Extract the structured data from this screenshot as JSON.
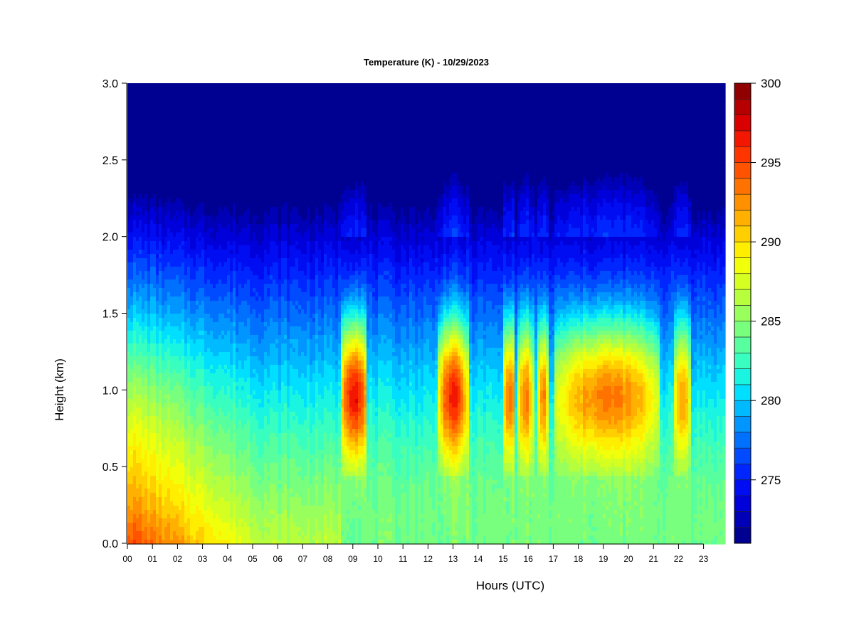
{
  "chart_data": {
    "type": "heatmap",
    "title": "Temperature (K) - 10/29/2023",
    "xlabel": "Hours (UTC)",
    "ylabel": "Height (km)",
    "xlim": [
      0,
      23.9
    ],
    "ylim": [
      0,
      3.0
    ],
    "x_tick_labels": [
      "00",
      "01",
      "02",
      "03",
      "04",
      "05",
      "06",
      "07",
      "08",
      "09",
      "10",
      "11",
      "12",
      "13",
      "14",
      "15",
      "16",
      "17",
      "18",
      "19",
      "20",
      "21",
      "22",
      "23"
    ],
    "y_ticks": [
      0.0,
      0.5,
      1.0,
      1.5,
      2.0,
      2.5,
      3.0
    ],
    "y_tick_labels": [
      "0.0",
      "0.5",
      "1.0",
      "1.5",
      "2.0",
      "2.5",
      "3.0"
    ],
    "colorbar": {
      "min": 271,
      "max": 300,
      "tick_values": [
        275,
        280,
        285,
        290,
        295,
        300
      ],
      "tick_labels": [
        "275",
        "280",
        "285",
        "290",
        "295",
        "300"
      ],
      "levels": 29,
      "colors": [
        "#00007f",
        "#0000b2",
        "#0000e5",
        "#0019ff",
        "#004cff",
        "#007fff",
        "#00b2ff",
        "#00e5ff",
        "#29ffce",
        "#56ffa0",
        "#82ff73",
        "#aeff46",
        "#d6ff1f",
        "#ffff00",
        "#ffd400",
        "#ffa900",
        "#ff7f00",
        "#ff5400",
        "#ff2a00",
        "#e50000",
        "#b20000",
        "#7f0000"
      ]
    },
    "grid": false,
    "warm_events": [
      {
        "start_hour": 8.5,
        "end_hour": 9.6,
        "peak_height_km": 1.0,
        "peak_K": 297
      },
      {
        "start_hour": 12.4,
        "end_hour": 13.6,
        "peak_height_km": 1.0,
        "peak_K": 296
      },
      {
        "start_hour": 15.0,
        "end_hour": 15.5,
        "peak_height_km": 1.0,
        "peak_K": 294
      },
      {
        "start_hour": 15.6,
        "end_hour": 16.2,
        "peak_height_km": 1.0,
        "peak_K": 293
      },
      {
        "start_hour": 16.4,
        "end_hour": 16.8,
        "peak_height_km": 1.0,
        "peak_K": 293
      },
      {
        "start_hour": 17.1,
        "end_hour": 21.3,
        "peak_height_km": 1.0,
        "peak_K": 293
      },
      {
        "start_hour": 21.8,
        "end_hour": 22.5,
        "peak_height_km": 1.0,
        "peak_K": 292
      }
    ],
    "surface_warm": {
      "start_hour": 0,
      "end_hour": 5.5,
      "surface_K": 295
    }
  }
}
